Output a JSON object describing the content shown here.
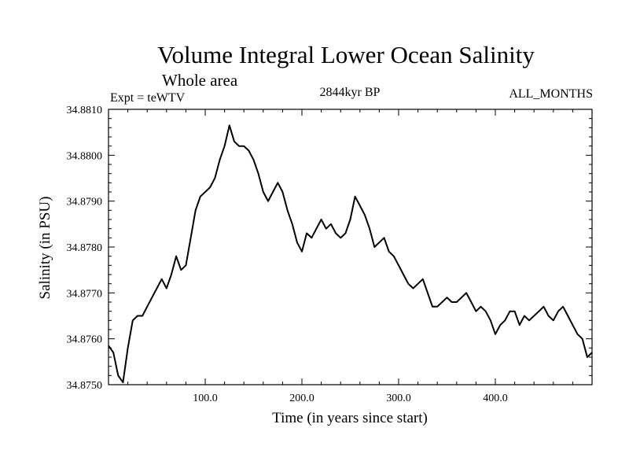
{
  "chart_data": {
    "type": "line",
    "title": "Volume Integral Lower Ocean Salinity",
    "subtitle": "Whole area",
    "experiment_label": "Expt = teWTV",
    "period_label": "2844kyr BP",
    "months_label": "ALL_MONTHS",
    "xlabel": "Time (in years since start)",
    "ylabel": "Salinity (in PSU)",
    "xlim": [
      0,
      500
    ],
    "ylim": [
      34.875,
      34.881
    ],
    "xticks": [
      100,
      200,
      300,
      400
    ],
    "xtick_labels": [
      "100.0",
      "200.0",
      "300.0",
      "400.0"
    ],
    "yticks": [
      34.875,
      34.876,
      34.877,
      34.878,
      34.879,
      34.88,
      34.881
    ],
    "ytick_labels": [
      "34.8750",
      "34.8760",
      "34.8770",
      "34.8780",
      "34.8790",
      "34.8800",
      "34.8810"
    ],
    "grid": false,
    "series": [
      {
        "name": "Salinity",
        "color": "#000000",
        "x": [
          0,
          5,
          10,
          15,
          20,
          25,
          30,
          35,
          40,
          45,
          50,
          55,
          60,
          65,
          70,
          75,
          80,
          85,
          90,
          95,
          100,
          105,
          110,
          115,
          120,
          125,
          130,
          135,
          140,
          145,
          150,
          155,
          160,
          165,
          170,
          175,
          180,
          185,
          190,
          195,
          200,
          205,
          210,
          215,
          220,
          225,
          230,
          235,
          240,
          245,
          250,
          255,
          260,
          265,
          270,
          275,
          280,
          285,
          290,
          295,
          300,
          305,
          310,
          315,
          320,
          325,
          330,
          335,
          340,
          345,
          350,
          355,
          360,
          365,
          370,
          375,
          380,
          385,
          390,
          395,
          400,
          405,
          410,
          415,
          420,
          425,
          430,
          435,
          440,
          445,
          450,
          455,
          460,
          465,
          470,
          475,
          480,
          485,
          490,
          495,
          500
        ],
        "values": [
          34.87585,
          34.8757,
          34.8752,
          34.87505,
          34.8758,
          34.8764,
          34.8765,
          34.8765,
          34.8767,
          34.8769,
          34.8771,
          34.8773,
          34.8771,
          34.8774,
          34.8778,
          34.8775,
          34.8776,
          34.8782,
          34.8788,
          34.8791,
          34.8792,
          34.8793,
          34.8795,
          34.8799,
          34.8802,
          34.88065,
          34.8803,
          34.8802,
          34.8802,
          34.8801,
          34.8799,
          34.8796,
          34.8792,
          34.879,
          34.8792,
          34.8794,
          34.8792,
          34.8788,
          34.8785,
          34.8781,
          34.8779,
          34.8783,
          34.8782,
          34.8784,
          34.8786,
          34.8784,
          34.8785,
          34.8783,
          34.8782,
          34.8783,
          34.8786,
          34.8791,
          34.8789,
          34.8787,
          34.8784,
          34.878,
          34.8781,
          34.8782,
          34.8779,
          34.8778,
          34.8776,
          34.8774,
          34.8772,
          34.8771,
          34.8772,
          34.8773,
          34.877,
          34.8767,
          34.8767,
          34.8768,
          34.8769,
          34.8768,
          34.8768,
          34.8769,
          34.877,
          34.8768,
          34.8766,
          34.8767,
          34.8766,
          34.8764,
          34.8761,
          34.8763,
          34.8764,
          34.8766,
          34.8766,
          34.8763,
          34.8765,
          34.8764,
          34.8765,
          34.8766,
          34.8767,
          34.8765,
          34.8764,
          34.8766,
          34.8767,
          34.8765,
          34.8763,
          34.8761,
          34.876,
          34.8756,
          34.8757
        ]
      }
    ]
  }
}
